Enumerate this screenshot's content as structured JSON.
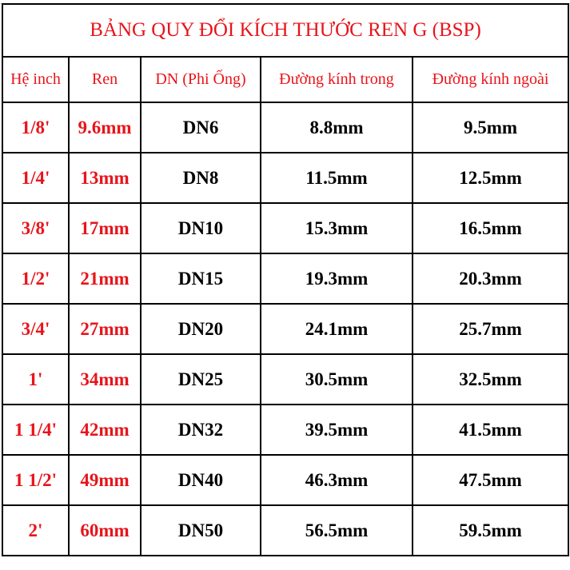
{
  "title": "BẢNG QUY ĐỔI KÍCH THƯỚC REN G (BSP)",
  "headers": [
    "Hệ inch",
    "Ren",
    "DN (Phi Ống)",
    "Đường kính trong",
    "Đường kính ngoài"
  ],
  "rows": [
    [
      "1/8'",
      "9.6mm",
      "DN6",
      "8.8mm",
      "9.5mm"
    ],
    [
      "1/4'",
      "13mm",
      "DN8",
      "11.5mm",
      "12.5mm"
    ],
    [
      "3/8'",
      "17mm",
      "DN10",
      "15.3mm",
      "16.5mm"
    ],
    [
      "1/2'",
      "21mm",
      "DN15",
      "19.3mm",
      "20.3mm"
    ],
    [
      "3/4'",
      "27mm",
      "DN20",
      "24.1mm",
      "25.7mm"
    ],
    [
      "1'",
      "34mm",
      "DN25",
      "30.5mm",
      "32.5mm"
    ],
    [
      "1 1/4'",
      "42mm",
      "DN32",
      "39.5mm",
      "41.5mm"
    ],
    [
      "1 1/2'",
      "49mm",
      "DN40",
      "46.3mm",
      "47.5mm"
    ],
    [
      "2'",
      "60mm",
      "DN50",
      "56.5mm",
      "59.5mm"
    ]
  ],
  "colors": {
    "accent": "#e8141b",
    "text": "#000000"
  }
}
